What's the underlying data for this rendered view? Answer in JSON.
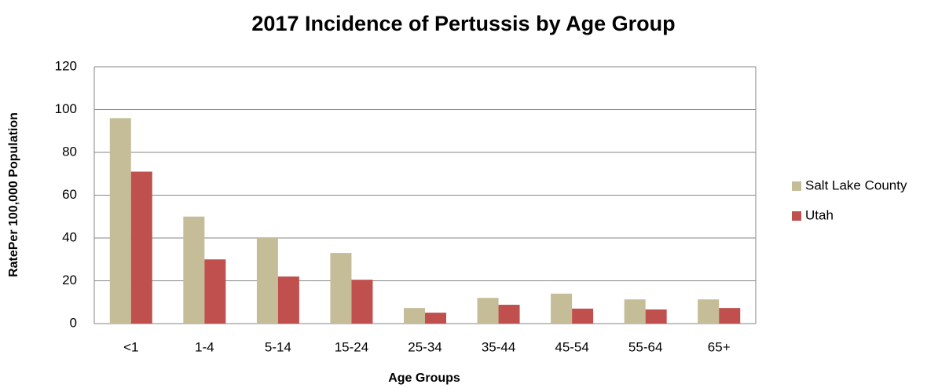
{
  "chart_data": {
    "type": "bar",
    "title": "2017 Incidence of Pertussis by Age Group",
    "x_label": "Age Groups",
    "y_label": "RatePer 100,000 Population",
    "categories": [
      "<1",
      "1-4",
      "5-14",
      "15-24",
      "25-34",
      "35-44",
      "45-54",
      "55-64",
      "65+"
    ],
    "series": [
      {
        "name": "Salt Lake County",
        "color": "#c4bd97",
        "values": [
          96,
          50,
          40,
          33,
          7.3,
          12,
          14,
          11.3,
          11.3
        ]
      },
      {
        "name": "Utah",
        "color": "#c0504d",
        "values": [
          71,
          30,
          22,
          20.5,
          5.1,
          8.8,
          7,
          6.6,
          7.3
        ]
      }
    ],
    "ylim": [
      0,
      120
    ],
    "yticks": [
      0,
      20,
      40,
      60,
      80,
      100,
      120
    ],
    "grid": true,
    "legend": "right"
  }
}
